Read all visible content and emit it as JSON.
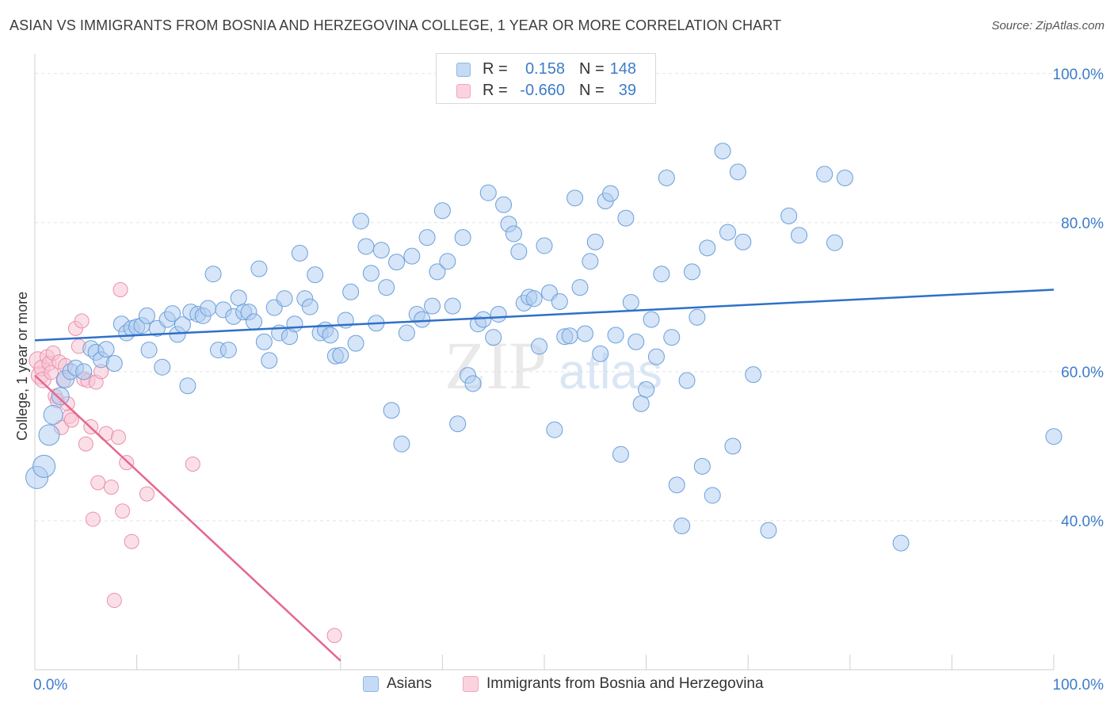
{
  "title": "ASIAN VS IMMIGRANTS FROM BOSNIA AND HERZEGOVINA COLLEGE, 1 YEAR OR MORE CORRELATION CHART",
  "source": "Source: ZipAtlas.com",
  "watermark": {
    "zip": "ZIP",
    "atlas": "atlas"
  },
  "legend": {
    "rows": [
      {
        "r_label": "R =",
        "r_value": "0.158",
        "n_label": "N =",
        "n_value": "148",
        "color": "#8fb8e8"
      },
      {
        "r_label": "R =",
        "r_value": "-0.660",
        "n_label": "N =",
        "n_value": "39",
        "color": "#f2a7bf"
      }
    ]
  },
  "bottom_legend": {
    "asians": "Asians",
    "bosnia": "Immigrants from Bosnia and Herzegovina"
  },
  "colors": {
    "asian_fill": "#aecbf0",
    "asian_stroke": "#6a9fdc",
    "asian_line": "#2e70c9",
    "bosnia_fill": "#f8c4d4",
    "bosnia_stroke": "#ea8fae",
    "bosnia_line": "#e5678f",
    "tick_label": "#3d7cc9",
    "grid": "#e3e3e3"
  },
  "chart_data": {
    "type": "scatter",
    "title": "ASIAN VS IMMIGRANTS FROM BOSNIA AND HERZEGOVINA COLLEGE, 1 YEAR OR MORE CORRELATION CHART",
    "xlabel": "",
    "ylabel": "College, 1 year or more",
    "xlim": [
      0,
      100
    ],
    "ylim": [
      20,
      102
    ],
    "x_tick_labels": [
      "0.0%",
      "100.0%"
    ],
    "y_ticks": [
      40,
      60,
      80,
      100
    ],
    "y_tick_labels": [
      "40.0%",
      "60.0%",
      "80.0%",
      "100.0%"
    ],
    "grid": true,
    "legend_position": "top-center",
    "series": [
      {
        "name": "Asians",
        "trend": {
          "x": [
            0,
            100
          ],
          "y": [
            64.2,
            71.0
          ]
        },
        "points": [
          [
            0.2,
            45.8,
            14
          ],
          [
            0.9,
            47.3,
            14
          ],
          [
            1.4,
            51.5,
            13
          ],
          [
            1.8,
            54.2,
            12
          ],
          [
            2.5,
            56.7,
            11
          ],
          [
            3.0,
            59.0,
            11
          ],
          [
            3.5,
            60.0,
            10
          ],
          [
            4.0,
            60.5,
            10
          ],
          [
            4.8,
            60.0,
            10
          ],
          [
            5.5,
            63.1,
            10
          ],
          [
            6.0,
            62.6,
            10
          ],
          [
            6.5,
            61.6,
            10
          ],
          [
            7.0,
            63.0,
            10
          ],
          [
            7.8,
            61.1,
            10
          ],
          [
            8.5,
            66.4,
            10
          ],
          [
            9.0,
            65.2,
            10
          ],
          [
            9.5,
            65.8,
            10
          ],
          [
            10.0,
            66.0,
            10
          ],
          [
            10.5,
            66.2,
            10
          ],
          [
            11.0,
            67.5,
            10
          ],
          [
            11.2,
            62.9,
            10
          ],
          [
            12.0,
            65.8,
            10
          ],
          [
            12.5,
            60.6,
            10
          ],
          [
            13.0,
            67.0,
            10
          ],
          [
            13.5,
            67.8,
            10
          ],
          [
            14.0,
            65.0,
            10
          ],
          [
            14.5,
            66.3,
            10
          ],
          [
            15.0,
            58.1,
            10
          ],
          [
            15.3,
            68.0,
            10
          ],
          [
            16.0,
            67.7,
            10
          ],
          [
            16.5,
            67.5,
            10
          ],
          [
            17.0,
            68.5,
            10
          ],
          [
            17.5,
            73.1,
            10
          ],
          [
            18.0,
            62.9,
            10
          ],
          [
            18.5,
            68.3,
            10
          ],
          [
            19.0,
            62.9,
            10
          ],
          [
            19.5,
            67.4,
            10
          ],
          [
            20.0,
            69.9,
            10
          ],
          [
            20.5,
            68.0,
            10
          ],
          [
            21.0,
            68.0,
            10
          ],
          [
            21.5,
            66.7,
            10
          ],
          [
            22.0,
            73.8,
            10
          ],
          [
            22.5,
            64.0,
            10
          ],
          [
            23.0,
            61.5,
            10
          ],
          [
            23.5,
            68.6,
            10
          ],
          [
            24.0,
            65.2,
            10
          ],
          [
            24.5,
            69.8,
            10
          ],
          [
            25.0,
            64.7,
            10
          ],
          [
            25.5,
            66.4,
            10
          ],
          [
            26.0,
            75.9,
            10
          ],
          [
            26.5,
            69.8,
            10
          ],
          [
            27.0,
            68.7,
            10
          ],
          [
            27.5,
            73.0,
            10
          ],
          [
            28.0,
            65.2,
            10
          ],
          [
            28.5,
            65.6,
            10
          ],
          [
            29.0,
            64.9,
            10
          ],
          [
            29.5,
            62.1,
            10
          ],
          [
            30.0,
            62.2,
            10
          ],
          [
            30.5,
            66.9,
            10
          ],
          [
            31.0,
            70.7,
            10
          ],
          [
            31.5,
            63.8,
            10
          ],
          [
            32.0,
            80.2,
            10
          ],
          [
            32.5,
            76.8,
            10
          ],
          [
            33.0,
            73.2,
            10
          ],
          [
            33.5,
            66.5,
            10
          ],
          [
            34.0,
            76.3,
            10
          ],
          [
            34.5,
            71.3,
            10
          ],
          [
            35.0,
            54.8,
            10
          ],
          [
            35.5,
            74.7,
            10
          ],
          [
            36.0,
            50.3,
            10
          ],
          [
            36.5,
            65.2,
            10
          ],
          [
            37.0,
            75.5,
            10
          ],
          [
            37.5,
            67.7,
            10
          ],
          [
            38.0,
            67.0,
            10
          ],
          [
            38.5,
            78.0,
            10
          ],
          [
            39.0,
            68.8,
            10
          ],
          [
            39.5,
            73.4,
            10
          ],
          [
            40.0,
            81.6,
            10
          ],
          [
            40.5,
            74.8,
            10
          ],
          [
            41.0,
            68.8,
            10
          ],
          [
            41.5,
            53.0,
            10
          ],
          [
            42.0,
            78.0,
            10
          ],
          [
            42.5,
            59.5,
            10
          ],
          [
            43.0,
            58.4,
            10
          ],
          [
            43.5,
            66.4,
            10
          ],
          [
            44.0,
            67.0,
            10
          ],
          [
            44.5,
            84.0,
            10
          ],
          [
            45.0,
            64.6,
            10
          ],
          [
            45.5,
            67.7,
            10
          ],
          [
            46.0,
            82.4,
            10
          ],
          [
            46.5,
            79.8,
            10
          ],
          [
            47.0,
            78.5,
            10
          ],
          [
            47.5,
            76.1,
            10
          ],
          [
            48.0,
            69.2,
            10
          ],
          [
            48.5,
            70.0,
            10
          ],
          [
            49.0,
            69.8,
            10
          ],
          [
            49.5,
            63.4,
            10
          ],
          [
            50.0,
            76.9,
            10
          ],
          [
            50.5,
            70.6,
            10
          ],
          [
            51.0,
            52.2,
            10
          ],
          [
            51.5,
            69.4,
            10
          ],
          [
            52.0,
            64.7,
            10
          ],
          [
            52.5,
            64.8,
            10
          ],
          [
            53.0,
            83.3,
            10
          ],
          [
            53.5,
            71.3,
            10
          ],
          [
            54.0,
            65.1,
            10
          ],
          [
            54.5,
            74.8,
            10
          ],
          [
            55.0,
            77.4,
            10
          ],
          [
            55.5,
            62.4,
            10
          ],
          [
            56.0,
            82.9,
            10
          ],
          [
            56.5,
            83.9,
            10
          ],
          [
            57.0,
            64.9,
            10
          ],
          [
            57.5,
            48.9,
            10
          ],
          [
            58.0,
            80.6,
            10
          ],
          [
            58.5,
            69.3,
            10
          ],
          [
            59.0,
            64.0,
            10
          ],
          [
            59.5,
            55.7,
            10
          ],
          [
            60.0,
            57.6,
            10
          ],
          [
            60.5,
            67.0,
            10
          ],
          [
            61.0,
            62.0,
            10
          ],
          [
            61.5,
            73.1,
            10
          ],
          [
            62.0,
            86.0,
            10
          ],
          [
            62.5,
            64.6,
            10
          ],
          [
            63.0,
            44.8,
            10
          ],
          [
            63.5,
            39.3,
            10
          ],
          [
            64.0,
            58.8,
            10
          ],
          [
            64.5,
            73.4,
            10
          ],
          [
            65.0,
            67.3,
            10
          ],
          [
            65.5,
            47.3,
            10
          ],
          [
            66.0,
            76.6,
            10
          ],
          [
            66.5,
            43.4,
            10
          ],
          [
            67.5,
            89.6,
            10
          ],
          [
            68.0,
            78.7,
            10
          ],
          [
            68.5,
            50.0,
            10
          ],
          [
            69.0,
            86.8,
            10
          ],
          [
            69.5,
            77.4,
            10
          ],
          [
            70.5,
            59.6,
            10
          ],
          [
            72.0,
            38.7,
            10
          ],
          [
            74.0,
            80.9,
            10
          ],
          [
            75.0,
            78.3,
            10
          ],
          [
            77.5,
            86.5,
            10
          ],
          [
            78.5,
            77.3,
            10
          ],
          [
            79.5,
            86.0,
            10
          ],
          [
            85.0,
            37.0,
            10
          ],
          [
            100.0,
            51.3,
            10
          ]
        ]
      },
      {
        "name": "Immigrants from Bosnia and Herzegovina",
        "trend": {
          "x": [
            0,
            30
          ],
          "y": [
            59.5,
            21.2
          ]
        },
        "points": [
          [
            0.3,
            61.5,
            11
          ],
          [
            0.5,
            59.5,
            11
          ],
          [
            0.7,
            60.5,
            10
          ],
          [
            0.8,
            58.9,
            10
          ],
          [
            1.2,
            62.0,
            9
          ],
          [
            1.4,
            61.1,
            9
          ],
          [
            1.6,
            59.9,
            9
          ],
          [
            1.8,
            62.5,
            9
          ],
          [
            2.0,
            56.7,
            9
          ],
          [
            2.2,
            56.1,
            9
          ],
          [
            2.4,
            61.3,
            9
          ],
          [
            2.6,
            52.5,
            9
          ],
          [
            2.8,
            58.8,
            9
          ],
          [
            3.0,
            60.8,
            9
          ],
          [
            3.2,
            55.7,
            9
          ],
          [
            3.4,
            54.0,
            9
          ],
          [
            3.6,
            53.5,
            9
          ],
          [
            4.0,
            65.8,
            9
          ],
          [
            4.3,
            63.4,
            9
          ],
          [
            4.6,
            66.8,
            9
          ],
          [
            4.8,
            59.0,
            9
          ],
          [
            5.0,
            50.3,
            9
          ],
          [
            5.2,
            58.8,
            9
          ],
          [
            5.5,
            52.6,
            9
          ],
          [
            5.7,
            40.2,
            9
          ],
          [
            6.0,
            58.6,
            9
          ],
          [
            6.2,
            45.1,
            9
          ],
          [
            6.5,
            60.0,
            9
          ],
          [
            7.0,
            51.7,
            9
          ],
          [
            7.5,
            44.5,
            9
          ],
          [
            7.8,
            29.3,
            9
          ],
          [
            8.2,
            51.2,
            9
          ],
          [
            8.4,
            71.0,
            9
          ],
          [
            8.6,
            41.3,
            9
          ],
          [
            9.0,
            47.8,
            9
          ],
          [
            9.5,
            37.2,
            9
          ],
          [
            11.0,
            43.6,
            9
          ],
          [
            15.5,
            47.6,
            9
          ],
          [
            29.4,
            24.6,
            9
          ]
        ]
      }
    ]
  }
}
